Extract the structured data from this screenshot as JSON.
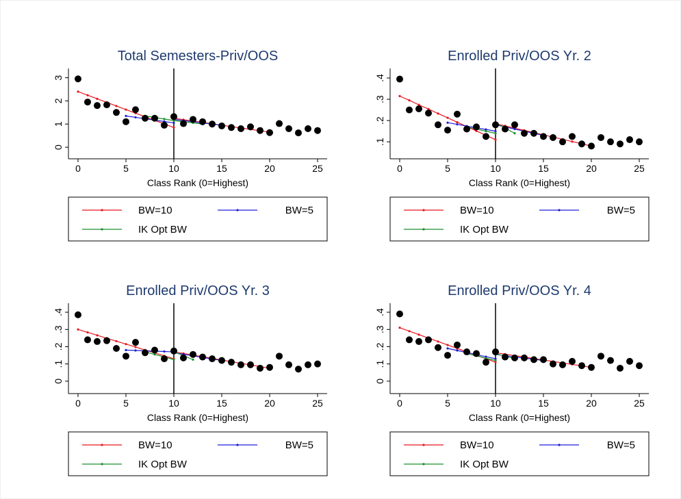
{
  "chart_data": [
    {
      "type": "scatter",
      "title": "Total Semesters-Priv/OOS",
      "x_label": "Class Rank (0=Highest)",
      "x": [
        0,
        1,
        2,
        3,
        4,
        5,
        6,
        7,
        8,
        9,
        10,
        11,
        12,
        13,
        14,
        15,
        16,
        17,
        18,
        19,
        20,
        21,
        22,
        23,
        24,
        25
      ],
      "values": [
        2.95,
        1.95,
        1.8,
        1.83,
        1.5,
        1.1,
        1.62,
        1.25,
        1.25,
        0.95,
        1.32,
        1.02,
        1.2,
        1.1,
        1.0,
        0.92,
        0.85,
        0.8,
        0.88,
        0.72,
        0.63,
        1.02,
        0.8,
        0.62,
        0.8,
        0.72
      ],
      "color": "#000000",
      "vline": 10,
      "xlim": [
        -1,
        26
      ],
      "xticks": [
        0,
        5,
        10,
        15,
        20,
        25
      ],
      "ylim": [
        -0.5,
        3.4
      ],
      "yticks": [
        0,
        1,
        2,
        3
      ],
      "series": [
        {
          "name": "BW=10",
          "color": "#e8161e",
          "x": [
            0,
            1,
            2,
            3,
            4,
            5,
            6,
            7,
            8,
            9,
            10,
            null,
            10,
            11,
            12,
            13,
            14,
            15,
            16,
            17,
            18,
            19,
            20
          ],
          "values": [
            2.4,
            2.245,
            2.09,
            1.935,
            1.78,
            1.625,
            1.47,
            1.315,
            1.16,
            1.005,
            0.85,
            null,
            1.25,
            1.19,
            1.13,
            1.07,
            1.01,
            0.95,
            0.89,
            0.83,
            0.77,
            0.71,
            0.65
          ]
        },
        {
          "name": "BW=5",
          "color": "#1d1dd6",
          "x": [
            5,
            6,
            7,
            8,
            9,
            10,
            null,
            10,
            11,
            12,
            13,
            14,
            15
          ],
          "values": [
            1.35,
            1.29,
            1.23,
            1.17,
            1.11,
            1.05,
            null,
            1.2,
            1.15,
            1.1,
            1.05,
            1.0,
            0.95
          ]
        },
        {
          "name": "IK Opt BW",
          "color": "#1a8f2a",
          "x": [
            7,
            8,
            9,
            10,
            null,
            10,
            11,
            12,
            13
          ],
          "values": [
            1.35,
            1.283,
            1.217,
            1.15,
            null,
            1.15,
            1.1,
            1.05,
            1.0
          ]
        }
      ]
    },
    {
      "type": "scatter",
      "title": "Enrolled Priv/OOS Yr. 2",
      "x_label": "Class Rank (0=Highest)",
      "x": [
        0,
        1,
        2,
        3,
        4,
        5,
        6,
        7,
        8,
        9,
        10,
        11,
        12,
        13,
        14,
        15,
        16,
        17,
        18,
        19,
        20,
        21,
        22,
        23,
        24,
        25
      ],
      "values": [
        0.395,
        0.25,
        0.255,
        0.235,
        0.18,
        0.155,
        0.23,
        0.16,
        0.17,
        0.125,
        0.18,
        0.16,
        0.18,
        0.14,
        0.14,
        0.125,
        0.12,
        0.1,
        0.125,
        0.09,
        0.08,
        0.12,
        0.1,
        0.09,
        0.11,
        0.1
      ],
      "color": "#000000",
      "vline": 10,
      "xlim": [
        -1,
        26
      ],
      "xticks": [
        0,
        5,
        10,
        15,
        20,
        25
      ],
      "ylim": [
        0.02,
        0.445
      ],
      "yticks": [
        {
          "value": 0.1,
          "label": ".1"
        },
        {
          "value": 0.2,
          "label": ".2"
        },
        {
          "value": 0.3,
          "label": ".3"
        },
        {
          "value": 0.4,
          "label": ".4"
        }
      ],
      "series": [
        {
          "name": "BW=10",
          "color": "#e8161e",
          "x": [
            0,
            1,
            2,
            3,
            4,
            5,
            6,
            7,
            8,
            9,
            10,
            null,
            10,
            11,
            12,
            13,
            14,
            15,
            16,
            17,
            18,
            19,
            20
          ],
          "values": [
            0.315,
            0.295,
            0.274,
            0.254,
            0.233,
            0.213,
            0.192,
            0.172,
            0.151,
            0.131,
            0.11,
            null,
            0.185,
            0.175,
            0.164,
            0.154,
            0.143,
            0.133,
            0.122,
            0.112,
            0.101,
            0.091,
            0.08
          ]
        },
        {
          "name": "BW=5",
          "color": "#1d1dd6",
          "x": [
            5,
            6,
            7,
            8,
            9,
            10,
            null,
            10,
            11,
            12,
            13,
            14,
            15
          ],
          "values": [
            0.19,
            0.182,
            0.174,
            0.166,
            0.158,
            0.15,
            null,
            0.18,
            0.17,
            0.16,
            0.15,
            0.14,
            0.13
          ]
        },
        {
          "name": "IK Opt BW",
          "color": "#1a8f2a",
          "x": [
            7,
            8,
            9,
            10,
            null,
            10,
            11,
            12
          ],
          "values": [
            0.17,
            0.16,
            0.15,
            0.14,
            null,
            0.19,
            0.165,
            0.14
          ]
        }
      ]
    },
    {
      "type": "scatter",
      "title": "Enrolled Priv/OOS Yr. 3",
      "x_label": "Class Rank (0=Highest)",
      "x": [
        0,
        1,
        2,
        3,
        4,
        5,
        6,
        7,
        8,
        9,
        10,
        11,
        12,
        13,
        14,
        15,
        16,
        17,
        18,
        19,
        20,
        21,
        22,
        23,
        24,
        25
      ],
      "values": [
        0.385,
        0.24,
        0.23,
        0.235,
        0.19,
        0.145,
        0.225,
        0.165,
        0.18,
        0.13,
        0.175,
        0.135,
        0.155,
        0.14,
        0.13,
        0.12,
        0.11,
        0.095,
        0.095,
        0.075,
        0.08,
        0.145,
        0.095,
        0.07,
        0.095,
        0.1
      ],
      "color": "#000000",
      "vline": 10,
      "xlim": [
        -1,
        26
      ],
      "xticks": [
        0,
        5,
        10,
        15,
        20,
        25
      ],
      "ylim": [
        -0.072,
        0.452
      ],
      "yticks": [
        0,
        {
          "value": 0.1,
          "label": ".1"
        },
        {
          "value": 0.2,
          "label": ".2"
        },
        {
          "value": 0.3,
          "label": ".3"
        },
        {
          "value": 0.4,
          "label": ".4"
        }
      ],
      "series": [
        {
          "name": "BW=10",
          "color": "#e8161e",
          "x": [
            0,
            1,
            2,
            3,
            4,
            5,
            6,
            7,
            8,
            9,
            10,
            null,
            10,
            11,
            12,
            13,
            14,
            15,
            16,
            17,
            18,
            19,
            20
          ],
          "values": [
            0.3,
            0.283,
            0.266,
            0.249,
            0.232,
            0.215,
            0.198,
            0.181,
            0.164,
            0.147,
            0.13,
            null,
            0.17,
            0.161,
            0.151,
            0.142,
            0.132,
            0.123,
            0.113,
            0.104,
            0.094,
            0.085,
            0.075
          ]
        },
        {
          "name": "BW=5",
          "color": "#1d1dd6",
          "x": [
            5,
            6,
            7,
            8,
            9,
            10,
            null,
            10,
            11,
            12,
            13,
            14,
            15
          ],
          "values": [
            0.18,
            0.178,
            0.176,
            0.174,
            0.172,
            0.17,
            null,
            0.165,
            0.156,
            0.147,
            0.138,
            0.129,
            0.12
          ]
        },
        {
          "name": "IK Opt BW",
          "color": "#1a8f2a",
          "x": [
            7,
            8,
            9,
            10,
            null,
            10,
            11,
            12
          ],
          "values": [
            0.17,
            0.155,
            0.14,
            0.125,
            null,
            0.17,
            0.148,
            0.125
          ]
        }
      ]
    },
    {
      "type": "scatter",
      "title": "Enrolled Priv/OOS Yr. 4",
      "x_label": "Class Rank (0=Highest)",
      "x": [
        0,
        1,
        2,
        3,
        4,
        5,
        6,
        7,
        8,
        9,
        10,
        11,
        12,
        13,
        14,
        15,
        16,
        17,
        18,
        19,
        20,
        21,
        22,
        23,
        24,
        25
      ],
      "values": [
        0.39,
        0.24,
        0.23,
        0.24,
        0.195,
        0.15,
        0.21,
        0.17,
        0.16,
        0.11,
        0.17,
        0.14,
        0.135,
        0.135,
        0.125,
        0.125,
        0.1,
        0.095,
        0.115,
        0.09,
        0.08,
        0.145,
        0.12,
        0.075,
        0.115,
        0.09
      ],
      "color": "#000000",
      "vline": 10,
      "xlim": [
        -1,
        26
      ],
      "xticks": [
        0,
        5,
        10,
        15,
        20,
        25
      ],
      "ylim": [
        -0.072,
        0.452
      ],
      "yticks": [
        0,
        {
          "value": 0.1,
          "label": ".1"
        },
        {
          "value": 0.2,
          "label": ".2"
        },
        {
          "value": 0.3,
          "label": ".3"
        },
        {
          "value": 0.4,
          "label": ".4"
        }
      ],
      "series": [
        {
          "name": "BW=10",
          "color": "#e8161e",
          "x": [
            0,
            1,
            2,
            3,
            4,
            5,
            6,
            7,
            8,
            9,
            10,
            null,
            10,
            11,
            12,
            13,
            14,
            15,
            16,
            17,
            18,
            19,
            20
          ],
          "values": [
            0.31,
            0.29,
            0.27,
            0.25,
            0.23,
            0.21,
            0.19,
            0.17,
            0.15,
            0.13,
            0.11,
            null,
            0.165,
            0.157,
            0.148,
            0.14,
            0.131,
            0.123,
            0.114,
            0.106,
            0.097,
            0.089,
            0.08
          ]
        },
        {
          "name": "BW=5",
          "color": "#1d1dd6",
          "x": [
            5,
            6,
            7,
            8,
            9,
            10,
            null,
            10,
            11,
            12,
            13,
            14,
            15
          ],
          "values": [
            0.19,
            0.178,
            0.166,
            0.154,
            0.142,
            0.13,
            null,
            0.155,
            0.148,
            0.141,
            0.134,
            0.127,
            0.12
          ]
        },
        {
          "name": "IK Opt BW",
          "color": "#1a8f2a",
          "x": [
            7,
            8,
            9,
            10,
            null,
            10,
            11,
            12
          ],
          "values": [
            0.16,
            0.147,
            0.133,
            0.12,
            null,
            0.16,
            0.145,
            0.13
          ]
        }
      ]
    }
  ]
}
